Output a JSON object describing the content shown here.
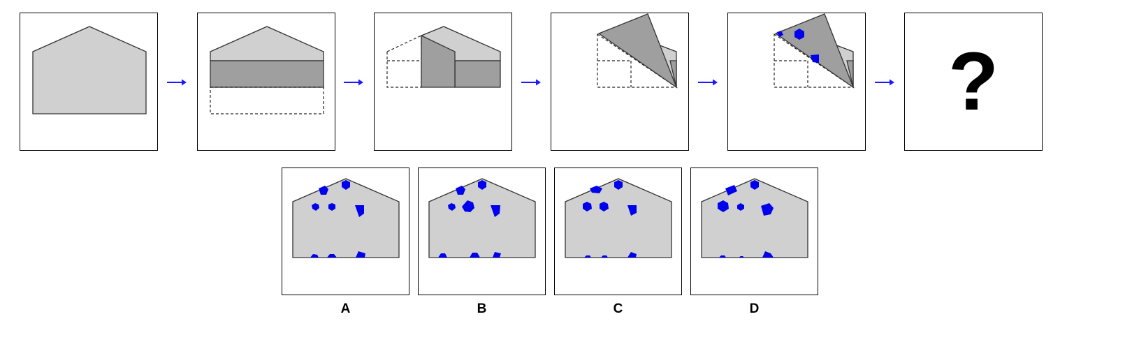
{
  "colors": {
    "paper": "#d0d0d0",
    "folded": "#9f9f9f",
    "hole": "#0000ee",
    "arrow": "#1a1aff",
    "outline": "#333333"
  },
  "question_symbol": "?",
  "options": [
    {
      "label": "A"
    },
    {
      "label": "B"
    },
    {
      "label": "C"
    },
    {
      "label": "D"
    }
  ]
}
